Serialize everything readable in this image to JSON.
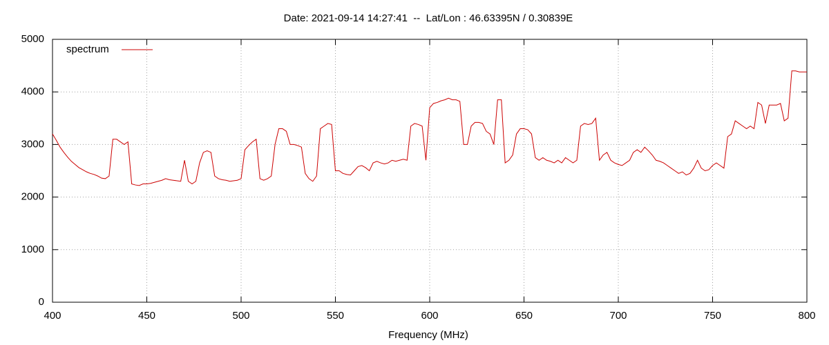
{
  "chart_data": {
    "type": "line",
    "title": "Date: 2021-09-14 14:27:41  --  Lat/Lon : 46.63395N / 0.30839E",
    "xlabel": "Frequency (MHz)",
    "xlim": [
      400,
      800
    ],
    "xticks": [
      400,
      450,
      500,
      550,
      600,
      650,
      700,
      750,
      800
    ],
    "ylim": [
      0,
      5000
    ],
    "yticks": [
      0,
      1000,
      2000,
      3000,
      4000,
      5000
    ],
    "grid": true,
    "legend": "upper left",
    "x": [
      400,
      402,
      404,
      406,
      408,
      410,
      412,
      414,
      416,
      418,
      420,
      422,
      424,
      426,
      428,
      430,
      432,
      434,
      436,
      438,
      440,
      442,
      444,
      446,
      448,
      450,
      452,
      454,
      456,
      458,
      460,
      462,
      464,
      466,
      468,
      470,
      472,
      474,
      476,
      478,
      480,
      482,
      484,
      486,
      488,
      490,
      492,
      494,
      496,
      498,
      500,
      502,
      504,
      506,
      508,
      510,
      512,
      514,
      516,
      518,
      520,
      522,
      524,
      526,
      528,
      530,
      532,
      534,
      536,
      538,
      540,
      542,
      544,
      546,
      548,
      550,
      552,
      554,
      556,
      558,
      560,
      562,
      564,
      566,
      568,
      570,
      572,
      574,
      576,
      578,
      580,
      582,
      584,
      586,
      588,
      590,
      592,
      594,
      596,
      598,
      600,
      602,
      604,
      606,
      608,
      610,
      612,
      614,
      616,
      618,
      620,
      622,
      624,
      626,
      628,
      630,
      632,
      634,
      636,
      638,
      640,
      642,
      644,
      646,
      648,
      650,
      652,
      654,
      656,
      658,
      660,
      662,
      664,
      666,
      668,
      670,
      672,
      674,
      676,
      678,
      680,
      682,
      684,
      686,
      688,
      690,
      692,
      694,
      696,
      698,
      700,
      702,
      704,
      706,
      708,
      710,
      712,
      714,
      716,
      718,
      720,
      722,
      724,
      726,
      728,
      730,
      732,
      734,
      736,
      738,
      740,
      742,
      744,
      746,
      748,
      750,
      752,
      754,
      756,
      758,
      760,
      762,
      764,
      766,
      768,
      770,
      772,
      774,
      776,
      778,
      780,
      782,
      784,
      786,
      788,
      790,
      792,
      794,
      796,
      798,
      800
    ],
    "series": [
      {
        "name": "spectrum",
        "color": "#cc0000",
        "values": [
          3200,
          3080,
          2950,
          2850,
          2760,
          2680,
          2620,
          2560,
          2520,
          2480,
          2450,
          2430,
          2400,
          2360,
          2350,
          2400,
          3100,
          3100,
          3050,
          3000,
          3050,
          2250,
          2230,
          2220,
          2250,
          2250,
          2260,
          2280,
          2300,
          2320,
          2350,
          2330,
          2320,
          2310,
          2300,
          2700,
          2300,
          2250,
          2300,
          2650,
          2850,
          2880,
          2850,
          2400,
          2350,
          2330,
          2320,
          2300,
          2310,
          2320,
          2350,
          2900,
          2980,
          3050,
          3100,
          2350,
          2320,
          2350,
          2400,
          3000,
          3300,
          3300,
          3250,
          3000,
          3000,
          2980,
          2950,
          2450,
          2350,
          2300,
          2400,
          3300,
          3350,
          3400,
          3380,
          2500,
          2500,
          2450,
          2430,
          2420,
          2500,
          2580,
          2600,
          2560,
          2500,
          2650,
          2680,
          2650,
          2630,
          2650,
          2700,
          2680,
          2700,
          2720,
          2700,
          3350,
          3400,
          3380,
          3350,
          2700,
          3700,
          3780,
          3800,
          3830,
          3850,
          3880,
          3850,
          3850,
          3820,
          3000,
          3000,
          3350,
          3420,
          3420,
          3400,
          3250,
          3200,
          3000,
          3850,
          3850,
          2650,
          2700,
          2800,
          3200,
          3300,
          3300,
          3280,
          3200,
          2750,
          2700,
          2750,
          2700,
          2680,
          2650,
          2700,
          2650,
          2750,
          2700,
          2650,
          2700,
          3350,
          3400,
          3380,
          3400,
          3500,
          2700,
          2800,
          2850,
          2700,
          2650,
          2620,
          2600,
          2650,
          2700,
          2850,
          2900,
          2850,
          2950,
          2880,
          2800,
          2700,
          2680,
          2650,
          2600,
          2550,
          2500,
          2450,
          2480,
          2420,
          2450,
          2550,
          2700,
          2550,
          2500,
          2520,
          2600,
          2650,
          2600,
          2550,
          3150,
          3200,
          3450,
          3400,
          3350,
          3300,
          3350,
          3300,
          3800,
          3750,
          3400,
          3750,
          3750,
          3750,
          3780,
          3450,
          3500,
          4400,
          4400,
          4380,
          4380,
          4380
        ]
      }
    ]
  }
}
